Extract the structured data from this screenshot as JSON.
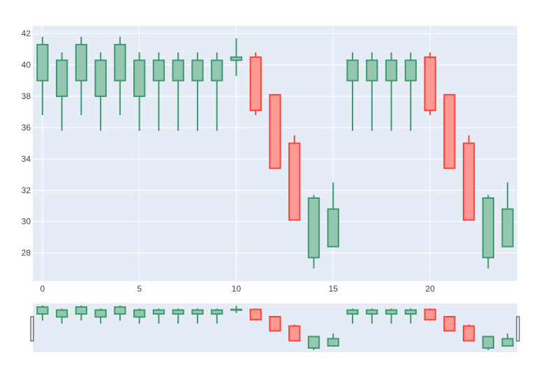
{
  "chart_data": {
    "type": "candlestick",
    "title": "",
    "xlabel": "",
    "ylabel": "",
    "xlim": [
      -0.5,
      24.5
    ],
    "ylim": [
      26.2,
      42.5
    ],
    "x_ticks": [
      0,
      5,
      10,
      15,
      20
    ],
    "y_ticks": [
      28,
      30,
      32,
      34,
      36,
      38,
      40,
      42
    ],
    "grid": true,
    "rangeslider": true,
    "colors": {
      "increasing_line": "#3d9970",
      "increasing_fill": "#94c6b0",
      "decreasing_line": "#ff4136",
      "decreasing_fill": "#ff9993",
      "plot_bg": "#e5ecf6",
      "grid": "#ffffff",
      "tick_text": "#444444"
    },
    "x": [
      0,
      1,
      2,
      3,
      4,
      5,
      6,
      7,
      8,
      9,
      10,
      11,
      12,
      13,
      14,
      15,
      16,
      17,
      18,
      19,
      20,
      21,
      22,
      23,
      24
    ],
    "open": [
      39.0,
      38.0,
      39.0,
      38.0,
      39.0,
      38.0,
      39.0,
      39.0,
      39.0,
      39.0,
      40.3,
      40.5,
      38.1,
      35.0,
      27.7,
      28.4,
      39.0,
      39.0,
      39.0,
      39.0,
      40.5,
      38.1,
      35.0,
      27.7,
      28.4
    ],
    "high": [
      41.8,
      40.8,
      41.8,
      40.8,
      41.8,
      40.8,
      40.8,
      40.8,
      40.8,
      40.8,
      41.7,
      40.8,
      38.1,
      35.5,
      31.7,
      32.5,
      40.8,
      40.8,
      40.8,
      40.8,
      40.8,
      38.1,
      35.5,
      31.7,
      32.5
    ],
    "low": [
      36.8,
      35.8,
      36.8,
      35.8,
      36.8,
      35.8,
      35.8,
      35.8,
      35.8,
      35.8,
      39.3,
      36.8,
      33.4,
      30.1,
      27.0,
      28.4,
      35.8,
      35.8,
      35.8,
      35.8,
      36.8,
      33.4,
      30.1,
      27.0,
      28.4
    ],
    "close": [
      41.3,
      40.3,
      41.3,
      40.3,
      41.3,
      40.3,
      40.3,
      40.3,
      40.3,
      40.3,
      40.5,
      37.1,
      33.4,
      30.1,
      31.5,
      30.8,
      40.3,
      40.3,
      40.3,
      40.3,
      37.1,
      33.4,
      30.1,
      31.5,
      30.8
    ]
  }
}
